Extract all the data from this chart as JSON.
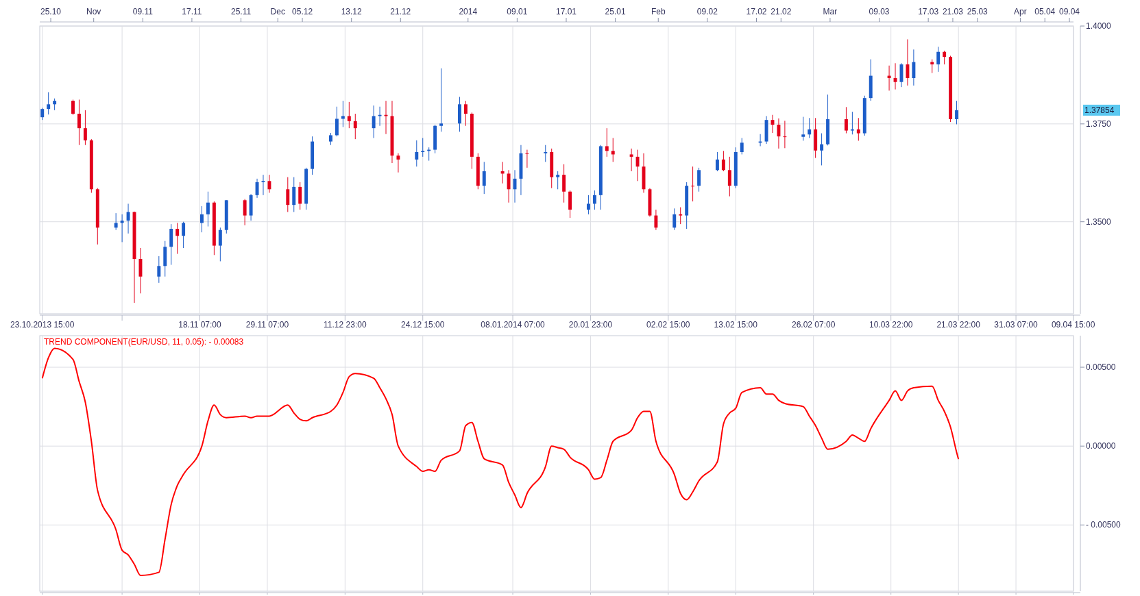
{
  "chart_data": [
    {
      "type": "candlestick",
      "x": [
        "2013-10-23T15:00",
        "2013-10-24T15:00",
        "2013-10-25T15:00",
        "2013-10-28T15:00",
        "2013-10-29T15:00",
        "2013-10-30T15:00",
        "2013-10-31T15:00",
        "2013-11-01T15:00",
        "2013-11-04T15:00",
        "2013-11-05T15:00",
        "2013-11-06T15:00",
        "2013-11-07T15:00",
        "2013-11-08T15:00",
        "2013-11-11T15:00",
        "2013-11-12T15:00",
        "2013-11-13T15:00",
        "2013-11-14T15:00",
        "2013-11-15T15:00",
        "2013-11-18T15:00",
        "2013-11-19T15:00",
        "2013-11-20T15:00",
        "2013-11-21T15:00",
        "2013-11-22T15:00",
        "2013-11-25T15:00",
        "2013-11-26T15:00",
        "2013-11-27T15:00",
        "2013-11-28T15:00",
        "2013-11-29T15:00",
        "2013-12-02T15:00",
        "2013-12-03T15:00",
        "2013-12-04T15:00",
        "2013-12-05T15:00",
        "2013-12-06T15:00",
        "2013-12-09T15:00",
        "2013-12-10T15:00",
        "2013-12-11T15:00",
        "2013-12-12T15:00",
        "2013-12-13T15:00",
        "2013-12-16T15:00",
        "2013-12-17T15:00",
        "2013-12-18T15:00",
        "2013-12-19T15:00",
        "2013-12-20T15:00",
        "2013-12-23T15:00",
        "2013-12-24T15:00",
        "2013-12-25T15:00",
        "2013-12-26T15:00",
        "2013-12-27T15:00",
        "2013-12-30T15:00",
        "2013-12-31T15:00",
        "2014-01-01T15:00",
        "2014-01-02T15:00",
        "2014-01-03T15:00",
        "2014-01-06T15:00",
        "2014-01-07T15:00",
        "2014-01-08T15:00",
        "2014-01-09T15:00",
        "2014-01-10T15:00",
        "2014-01-13T15:00",
        "2014-01-14T15:00",
        "2014-01-15T15:00",
        "2014-01-16T15:00",
        "2014-01-17T15:00",
        "2014-01-20T15:00",
        "2014-01-21T15:00",
        "2014-01-22T15:00",
        "2014-01-23T15:00",
        "2014-01-24T15:00",
        "2014-01-27T15:00",
        "2014-01-28T15:00",
        "2014-01-29T15:00",
        "2014-01-30T15:00",
        "2014-01-31T15:00",
        "2014-02-03T15:00",
        "2014-02-04T15:00",
        "2014-02-05T15:00",
        "2014-02-06T15:00",
        "2014-02-07T15:00",
        "2014-02-10T15:00",
        "2014-02-11T15:00",
        "2014-02-12T15:00",
        "2014-02-13T15:00",
        "2014-02-14T15:00",
        "2014-02-17T15:00",
        "2014-02-18T15:00",
        "2014-02-19T15:00",
        "2014-02-20T15:00",
        "2014-02-21T15:00",
        "2014-02-24T15:00",
        "2014-02-25T15:00",
        "2014-02-26T15:00",
        "2014-02-27T15:00",
        "2014-02-28T15:00",
        "2014-03-03T15:00",
        "2014-03-04T15:00",
        "2014-03-05T15:00",
        "2014-03-06T15:00",
        "2014-03-07T15:00",
        "2014-03-10T15:00",
        "2014-03-11T15:00",
        "2014-03-12T15:00",
        "2014-03-13T15:00",
        "2014-03-14T15:00",
        "2014-03-17T15:00",
        "2014-03-18T15:00",
        "2014-03-19T15:00",
        "2014-03-20T15:00",
        "2014-03-21T15:00"
      ],
      "ohlc": [
        [
          1.3767,
          1.3791,
          1.376,
          1.3788
        ],
        [
          1.3788,
          1.3831,
          1.3774,
          1.38
        ],
        [
          1.38,
          1.3815,
          1.3785,
          1.3809
        ],
        [
          1.3809,
          1.3812,
          1.3773,
          1.3776
        ],
        [
          1.3776,
          1.3812,
          1.3696,
          1.3739
        ],
        [
          1.3739,
          1.3785,
          1.3696,
          1.3708
        ],
        [
          1.3708,
          1.3711,
          1.3574,
          1.3583
        ],
        [
          1.3583,
          1.3586,
          1.3442,
          1.3485
        ],
        [
          1.3485,
          1.3522,
          1.3479,
          1.3497
        ],
        [
          1.3497,
          1.3519,
          1.3448,
          1.3503
        ],
        [
          1.3503,
          1.3546,
          1.347,
          1.3525
        ],
        [
          1.3525,
          1.3526,
          1.3293,
          1.3405
        ],
        [
          1.3405,
          1.3433,
          1.3317,
          1.336
        ],
        [
          1.336,
          1.3412,
          1.3344,
          1.3387
        ],
        [
          1.3387,
          1.3451,
          1.336,
          1.3436
        ],
        [
          1.3436,
          1.3494,
          1.339,
          1.3482
        ],
        [
          1.3482,
          1.3497,
          1.3418,
          1.3464
        ],
        [
          1.3464,
          1.35,
          1.3433,
          1.3497
        ],
        [
          1.3497,
          1.354,
          1.3473,
          1.3519
        ],
        [
          1.3519,
          1.3577,
          1.3488,
          1.3549
        ],
        [
          1.3549,
          1.3552,
          1.3415,
          1.3439
        ],
        [
          1.3439,
          1.3485,
          1.3399,
          1.3479
        ],
        [
          1.3479,
          1.3555,
          1.347,
          1.3555
        ],
        [
          1.3555,
          1.3558,
          1.3491,
          1.3516
        ],
        [
          1.3516,
          1.3571,
          1.3503,
          1.3568
        ],
        [
          1.3568,
          1.361,
          1.3561,
          1.3601
        ],
        [
          1.3601,
          1.362,
          1.3568,
          1.3604
        ],
        [
          1.3604,
          1.362,
          1.3574,
          1.3583
        ],
        [
          1.3583,
          1.3614,
          1.3525,
          1.3543
        ],
        [
          1.3543,
          1.3614,
          1.3525,
          1.3589
        ],
        [
          1.3589,
          1.3601,
          1.3531,
          1.3546
        ],
        [
          1.3546,
          1.3638,
          1.3531,
          1.3635
        ],
        [
          1.3635,
          1.3718,
          1.362,
          1.3705
        ],
        [
          1.3705,
          1.3727,
          1.3696,
          1.3721
        ],
        [
          1.3721,
          1.3794,
          1.3718,
          1.3763
        ],
        [
          1.3763,
          1.3809,
          1.3742,
          1.377
        ],
        [
          1.377,
          1.3806,
          1.3739,
          1.3757
        ],
        [
          1.3757,
          1.3776,
          1.3711,
          1.3739
        ],
        [
          1.3739,
          1.3797,
          1.3714,
          1.377
        ],
        [
          1.377,
          1.3794,
          1.3745,
          1.3773
        ],
        [
          1.3773,
          1.3809,
          1.3724,
          1.377
        ],
        [
          1.377,
          1.3809,
          1.365,
          1.3669
        ],
        [
          1.3669,
          1.3675,
          1.3626,
          1.3659
        ],
        [
          1.3659,
          1.3708,
          1.3641,
          1.3678
        ],
        [
          1.3678,
          1.3714,
          1.3666,
          1.3681
        ],
        [
          1.3681,
          1.369,
          1.3656,
          1.3684
        ],
        [
          1.3684,
          1.3748,
          1.3675,
          1.3745
        ],
        [
          1.3745,
          1.3892,
          1.373,
          1.3751
        ],
        [
          1.3751,
          1.3819,
          1.373,
          1.38
        ],
        [
          1.38,
          1.3809,
          1.3745,
          1.3776
        ],
        [
          1.3776,
          1.3779,
          1.3635,
          1.3666
        ],
        [
          1.3666,
          1.3675,
          1.3583,
          1.3592
        ],
        [
          1.3592,
          1.3653,
          1.3571,
          1.3629
        ],
        [
          1.3629,
          1.3653,
          1.3598,
          1.3623
        ],
        [
          1.3623,
          1.3632,
          1.3549,
          1.3583
        ],
        [
          1.3583,
          1.3632,
          1.3549,
          1.361
        ],
        [
          1.361,
          1.3696,
          1.3568,
          1.3675
        ],
        [
          1.3675,
          1.3684,
          1.3638,
          1.3675
        ],
        [
          1.3675,
          1.3696,
          1.3653,
          1.3678
        ],
        [
          1.3678,
          1.3687,
          1.3586,
          1.3614
        ],
        [
          1.3614,
          1.3629,
          1.3583,
          1.362
        ],
        [
          1.362,
          1.3647,
          1.3549,
          1.3577
        ],
        [
          1.3577,
          1.358,
          1.351,
          1.3531
        ],
        [
          1.3531,
          1.3568,
          1.3519,
          1.3546
        ],
        [
          1.3546,
          1.358,
          1.3531,
          1.3568
        ],
        [
          1.3568,
          1.3696,
          1.3531,
          1.3693
        ],
        [
          1.3693,
          1.3739,
          1.3666,
          1.3681
        ],
        [
          1.3681,
          1.3714,
          1.3653,
          1.3672
        ],
        [
          1.3672,
          1.3687,
          1.3629,
          1.3666
        ],
        [
          1.3666,
          1.3684,
          1.3604,
          1.3641
        ],
        [
          1.3641,
          1.3675,
          1.3574,
          1.3583
        ],
        [
          1.3583,
          1.3586,
          1.3513,
          1.3516
        ],
        [
          1.3516,
          1.3531,
          1.3479,
          1.3485
        ],
        [
          1.3485,
          1.3534,
          1.3479,
          1.3519
        ],
        [
          1.3519,
          1.3537,
          1.3494,
          1.3516
        ],
        [
          1.3516,
          1.3601,
          1.3482,
          1.3592
        ],
        [
          1.3592,
          1.3641,
          1.3552,
          1.3592
        ],
        [
          1.3592,
          1.3638,
          1.3577,
          1.3632
        ],
        [
          1.3632,
          1.3678,
          1.3629,
          1.3659
        ],
        [
          1.3659,
          1.3681,
          1.3629,
          1.3632
        ],
        [
          1.3632,
          1.3666,
          1.3565,
          1.3592
        ],
        [
          1.3592,
          1.369,
          1.3586,
          1.3678
        ],
        [
          1.3678,
          1.3714,
          1.3672,
          1.3702
        ],
        [
          1.3702,
          1.3724,
          1.3693,
          1.3705
        ],
        [
          1.3705,
          1.377,
          1.3699,
          1.376
        ],
        [
          1.376,
          1.3773,
          1.3727,
          1.3748
        ],
        [
          1.3748,
          1.3764,
          1.3687,
          1.3718
        ],
        [
          1.3718,
          1.3758,
          1.3688,
          1.3717
        ],
        [
          1.3717,
          1.3768,
          1.3707,
          1.3723
        ],
        [
          1.3723,
          1.3765,
          1.3714,
          1.3736
        ],
        [
          1.3736,
          1.3765,
          1.3663,
          1.3682
        ],
        [
          1.3682,
          1.3726,
          1.3644,
          1.3698
        ],
        [
          1.3698,
          1.3825,
          1.3695,
          1.3762
        ],
        [
          1.3762,
          1.3793,
          1.3726,
          1.3733
        ],
        [
          1.3733,
          1.3781,
          1.3723,
          1.3736
        ],
        [
          1.3736,
          1.3765,
          1.3707,
          1.3726
        ],
        [
          1.3726,
          1.3822,
          1.372,
          1.3816
        ],
        [
          1.3816,
          1.3915,
          1.3809,
          1.3873
        ],
        [
          1.3873,
          1.3899,
          1.3835,
          1.3867
        ],
        [
          1.3867,
          1.3905,
          1.3838,
          1.3857
        ],
        [
          1.3857,
          1.3905,
          1.3844,
          1.3902
        ],
        [
          1.3902,
          1.3966,
          1.3848,
          1.3867
        ],
        [
          1.3867,
          1.394,
          1.3848,
          1.3908
        ],
        [
          1.3908,
          1.3915,
          1.388,
          1.3902
        ],
        [
          1.3902,
          1.3947,
          1.3883,
          1.3934
        ],
        [
          1.3934,
          1.3937,
          1.3902,
          1.3921
        ],
        [
          1.3921,
          1.3924,
          1.3755,
          1.3762
        ],
        [
          1.3762,
          1.3809,
          1.3749,
          1.3785
        ]
      ],
      "colors": [
        "#1c5dc9",
        "#1c5dc9",
        "#1c5dc9",
        "#e3001b",
        "#e3001b",
        "#e3001b",
        "#e3001b",
        "#e3001b",
        "#1c5dc9",
        "#1c5dc9",
        "#1c5dc9",
        "#e3001b",
        "#e3001b",
        "#1c5dc9",
        "#1c5dc9",
        "#1c5dc9",
        "#e3001b",
        "#1c5dc9",
        "#1c5dc9",
        "#1c5dc9",
        "#e3001b",
        "#1c5dc9",
        "#1c5dc9",
        "#e3001b",
        "#1c5dc9",
        "#1c5dc9",
        "#1c5dc9",
        "#e3001b",
        "#e3001b",
        "#1c5dc9",
        "#e3001b",
        "#1c5dc9",
        "#1c5dc9",
        "#1c5dc9",
        "#1c5dc9",
        "#1c5dc9",
        "#e3001b",
        "#e3001b",
        "#1c5dc9",
        "#1c5dc9",
        "#e3001b",
        "#e3001b",
        "#e3001b",
        "#1c5dc9",
        "#1c5dc9",
        "#1c5dc9",
        "#1c5dc9",
        "#1c5dc9",
        "#1c5dc9",
        "#e3001b",
        "#e3001b",
        "#e3001b",
        "#1c5dc9",
        "#e3001b",
        "#e3001b",
        "#1c5dc9",
        "#1c5dc9",
        "#e3001b",
        "#1c5dc9",
        "#e3001b",
        "#1c5dc9",
        "#e3001b",
        "#e3001b",
        "#1c5dc9",
        "#1c5dc9",
        "#1c5dc9",
        "#e3001b",
        "#e3001b",
        "#e3001b",
        "#e3001b",
        "#e3001b",
        "#e3001b",
        "#e3001b",
        "#1c5dc9",
        "#e3001b",
        "#1c5dc9",
        "#e3001b",
        "#1c5dc9",
        "#1c5dc9",
        "#e3001b",
        "#e3001b",
        "#1c5dc9",
        "#1c5dc9",
        "#1c5dc9",
        "#1c5dc9",
        "#e3001b",
        "#e3001b",
        "#e3001b",
        "#1c5dc9",
        "#1c5dc9",
        "#e3001b",
        "#1c5dc9",
        "#1c5dc9",
        "#e3001b",
        "#1c5dc9",
        "#e3001b",
        "#1c5dc9",
        "#1c5dc9",
        "#e3001b",
        "#e3001b",
        "#1c5dc9",
        "#e3001b",
        "#1c5dc9",
        "#e3001b",
        "#1c5dc9",
        "#e3001b",
        "#e3001b",
        "#1c5dc9"
      ],
      "xlim": [
        "2013-10-23T05:00",
        "2014-04-09T16:00"
      ],
      "xticks": [
        {
          "value": "2013-10-23T15:00",
          "label": "23.10.2013 15:00"
        },
        {
          "value": "2013-11-05T15:00",
          "label": null
        },
        {
          "value": "2013-11-18T07:00",
          "label": "18.11 07:00"
        },
        {
          "value": "2013-11-29T07:00",
          "label": "29.11 07:00"
        },
        {
          "value": "2013-12-11T23:00",
          "label": "11.12 23:00"
        },
        {
          "value": "2013-12-24T15:00",
          "label": "24.12 15:00"
        },
        {
          "value": "2014-01-08T07:00",
          "label": "08.01.2014 07:00"
        },
        {
          "value": "2014-01-20T23:00",
          "label": "20.01 23:00"
        },
        {
          "value": "2014-02-02T15:00",
          "label": "02.02 15:00"
        },
        {
          "value": "2014-02-13T15:00",
          "label": "13.02 15:00"
        },
        {
          "value": "2014-02-26T07:00",
          "label": "26.02 07:00"
        },
        {
          "value": "2014-03-10T22:00",
          "label": "10.03 22:00"
        },
        {
          "value": "2014-03-21T22:00",
          "label": "21.03 22:00"
        },
        {
          "value": "2014-03-31T07:00",
          "label": "31.03 07:00"
        },
        {
          "value": "2014-04-09T15:00",
          "label": "09.04 15:00"
        }
      ],
      "x2lim": [
        "2013-10-23T05:00",
        "2014-04-09T16:00"
      ],
      "x2ticks": [
        {
          "value": "2013-10-25",
          "label": "25.10"
        },
        {
          "value": "2013-11-01",
          "label": "Nov"
        },
        {
          "value": "2013-11-09",
          "label": "09.11"
        },
        {
          "value": "2013-11-17",
          "label": "17.11"
        },
        {
          "value": "2013-11-25",
          "label": "25.11"
        },
        {
          "value": "2013-12-01",
          "label": "Dec"
        },
        {
          "value": "2013-12-05",
          "label": "05.12"
        },
        {
          "value": "2013-12-13",
          "label": "13.12"
        },
        {
          "value": "2013-12-21",
          "label": "21.12"
        },
        {
          "value": "2014-01-01",
          "label": "2014"
        },
        {
          "value": "2014-01-09",
          "label": "09.01"
        },
        {
          "value": "2014-01-17",
          "label": "17.01"
        },
        {
          "value": "2014-01-25",
          "label": "25.01"
        },
        {
          "value": "2014-02-01",
          "label": "Feb"
        },
        {
          "value": "2014-02-09",
          "label": "09.02"
        },
        {
          "value": "2014-02-17",
          "label": "17.02"
        },
        {
          "value": "2014-02-21",
          "label": "21.02"
        },
        {
          "value": "2014-03-01",
          "label": "Mar"
        },
        {
          "value": "2014-03-09",
          "label": "09.03"
        },
        {
          "value": "2014-03-17",
          "label": "17.03"
        },
        {
          "value": "2014-03-21",
          "label": "21.03"
        },
        {
          "value": "2014-03-25",
          "label": "25.03"
        },
        {
          "value": "2014-04-01",
          "label": "Apr"
        },
        {
          "value": "2014-04-05",
          "label": "05.04"
        },
        {
          "value": "2014-04-09",
          "label": "09.04"
        }
      ],
      "ylim": [
        1.3265,
        1.4
      ],
      "yticks": [
        {
          "value": 1.35,
          "label": "1.3500"
        },
        {
          "value": 1.375,
          "label": "1.3750"
        },
        {
          "value": 1.4,
          "label": "1.4000"
        }
      ],
      "annotations": [
        "1.37854"
      ],
      "grid": true
    },
    {
      "type": "line",
      "title": "TREND COMPONENT(EUR/USD, 11, 0.05): - 0.00083",
      "series": [
        {
          "color": "#ff0000",
          "x": [
            "2013-10-23T15:00",
            "2013-10-24T15:00",
            "2013-10-25T15:00",
            "2013-10-28T15:00",
            "2013-10-29T15:00",
            "2013-10-30T15:00",
            "2013-10-31T15:00",
            "2013-11-01T15:00",
            "2013-11-04T15:00",
            "2013-11-05T15:00",
            "2013-11-06T15:00",
            "2013-11-07T15:00",
            "2013-11-08T15:00",
            "2013-11-11T15:00",
            "2013-11-12T15:00",
            "2013-11-13T15:00",
            "2013-11-14T15:00",
            "2013-11-15T15:00",
            "2013-11-18T15:00",
            "2013-11-19T15:00",
            "2013-11-20T15:00",
            "2013-11-21T15:00",
            "2013-11-22T15:00",
            "2013-11-25T15:00",
            "2013-11-26T15:00",
            "2013-11-27T15:00",
            "2013-11-28T15:00",
            "2013-11-29T15:00",
            "2013-12-02T15:00",
            "2013-12-03T15:00",
            "2013-12-04T15:00",
            "2013-12-05T15:00",
            "2013-12-06T15:00",
            "2013-12-09T15:00",
            "2013-12-10T15:00",
            "2013-12-11T15:00",
            "2013-12-12T15:00",
            "2013-12-13T15:00",
            "2013-12-16T15:00",
            "2013-12-17T15:00",
            "2013-12-18T15:00",
            "2013-12-19T15:00",
            "2013-12-20T15:00",
            "2013-12-23T15:00",
            "2013-12-24T15:00",
            "2013-12-25T15:00",
            "2013-12-26T15:00",
            "2013-12-27T15:00",
            "2013-12-30T15:00",
            "2013-12-31T15:00",
            "2014-01-01T15:00",
            "2014-01-02T15:00",
            "2014-01-03T15:00",
            "2014-01-06T15:00",
            "2014-01-07T15:00",
            "2014-01-08T15:00",
            "2014-01-09T15:00",
            "2014-01-10T15:00",
            "2014-01-13T15:00",
            "2014-01-14T15:00",
            "2014-01-15T15:00",
            "2014-01-16T15:00",
            "2014-01-17T15:00",
            "2014-01-20T15:00",
            "2014-01-21T15:00",
            "2014-01-22T15:00",
            "2014-01-23T15:00",
            "2014-01-24T15:00",
            "2014-01-27T15:00",
            "2014-01-28T15:00",
            "2014-01-29T15:00",
            "2014-01-30T15:00",
            "2014-01-31T15:00",
            "2014-02-03T15:00",
            "2014-02-04T15:00",
            "2014-02-05T15:00",
            "2014-02-06T15:00",
            "2014-02-07T15:00",
            "2014-02-10T15:00",
            "2014-02-11T15:00",
            "2014-02-12T15:00",
            "2014-02-13T15:00",
            "2014-02-14T15:00",
            "2014-02-17T15:00",
            "2014-02-18T15:00",
            "2014-02-19T15:00",
            "2014-02-20T15:00",
            "2014-02-21T15:00",
            "2014-02-24T15:00",
            "2014-02-25T15:00",
            "2014-02-26T15:00",
            "2014-02-27T15:00",
            "2014-02-28T15:00",
            "2014-03-03T15:00",
            "2014-03-04T15:00",
            "2014-03-05T15:00",
            "2014-03-06T15:00",
            "2014-03-07T15:00",
            "2014-03-10T15:00",
            "2014-03-11T15:00",
            "2014-03-12T15:00",
            "2014-03-13T15:00",
            "2014-03-14T15:00",
            "2014-03-17T15:00",
            "2014-03-18T15:00",
            "2014-03-19T15:00",
            "2014-03-20T15:00",
            "2014-03-21T15:00",
            "2014-03-21T22:00"
          ],
          "values": [
            0.0043,
            0.0056,
            0.0062,
            0.0055,
            0.0041,
            0.0028,
            0.0003,
            -0.0028,
            -0.0053,
            -0.0066,
            -0.0069,
            -0.0075,
            -0.0082,
            -0.008,
            -0.0059,
            -0.0037,
            -0.0025,
            -0.0018,
            0.0,
            0.0016,
            0.0026,
            0.002,
            0.0018,
            0.0019,
            0.0018,
            0.0019,
            0.0019,
            0.0019,
            0.0026,
            0.0021,
            0.0017,
            0.0016,
            0.0018,
            0.0022,
            0.0026,
            0.0034,
            0.0044,
            0.0046,
            0.0043,
            0.0037,
            0.003,
            0.002,
            0.0,
            -0.0013,
            -0.0016,
            -0.0015,
            -0.0016,
            -0.0009,
            -0.0003,
            0.0013,
            0.0015,
            0.0003,
            -0.0008,
            -0.0012,
            -0.0023,
            -0.0031,
            -0.0039,
            -0.003,
            -0.0013,
            0.0,
            -0.0001,
            -0.0002,
            -0.0007,
            -0.0015,
            -0.0021,
            -0.002,
            -0.0009,
            0.0003,
            0.001,
            0.0018,
            0.0022,
            0.0022,
            0.0003,
            -0.0018,
            -0.003,
            -0.0034,
            -0.0029,
            -0.0022,
            -0.001,
            0.0014,
            0.0021,
            0.0024,
            0.0034,
            0.0037,
            0.0033,
            0.0033,
            0.0029,
            0.0027,
            0.0025,
            0.0019,
            0.0013,
            0.0005,
            -0.0002,
            0.0003,
            0.0007,
            0.0005,
            0.0003,
            0.0011,
            0.0029,
            0.0035,
            0.0029,
            0.0035,
            0.0037,
            0.0038,
            0.0029,
            0.0022,
            0.0012,
            -0.0004,
            -0.00083
          ]
        }
      ],
      "xlim": [
        "2013-10-23T05:00",
        "2014-04-09T16:00"
      ],
      "xticks": [
        {
          "value": "2013-10-23T15:00",
          "label": null
        },
        {
          "value": "2013-11-05T15:00",
          "label": null
        },
        {
          "value": "2013-11-18T07:00",
          "label": null
        },
        {
          "value": "2013-11-29T07:00",
          "label": null
        },
        {
          "value": "2013-12-11T23:00",
          "label": null
        },
        {
          "value": "2013-12-24T15:00",
          "label": null
        },
        {
          "value": "2014-01-08T07:00",
          "label": null
        },
        {
          "value": "2014-01-20T23:00",
          "label": null
        },
        {
          "value": "2014-02-02T15:00",
          "label": null
        },
        {
          "value": "2014-02-13T15:00",
          "label": null
        },
        {
          "value": "2014-02-26T07:00",
          "label": null
        },
        {
          "value": "2014-03-10T22:00",
          "label": null
        },
        {
          "value": "2014-03-21T22:00",
          "label": null
        },
        {
          "value": "2014-03-31T07:00",
          "label": null
        },
        {
          "value": "2014-04-09T15:00",
          "label": null
        }
      ],
      "ylim": [
        -0.0092,
        0.007
      ],
      "yticks": [
        {
          "value": 0.005,
          "label": "0.00500"
        },
        {
          "value": 0,
          "label": "0.00000"
        },
        {
          "value": -0.005,
          "label": "- 0.00500"
        }
      ],
      "tick_labels": "y",
      "grid": true
    }
  ]
}
